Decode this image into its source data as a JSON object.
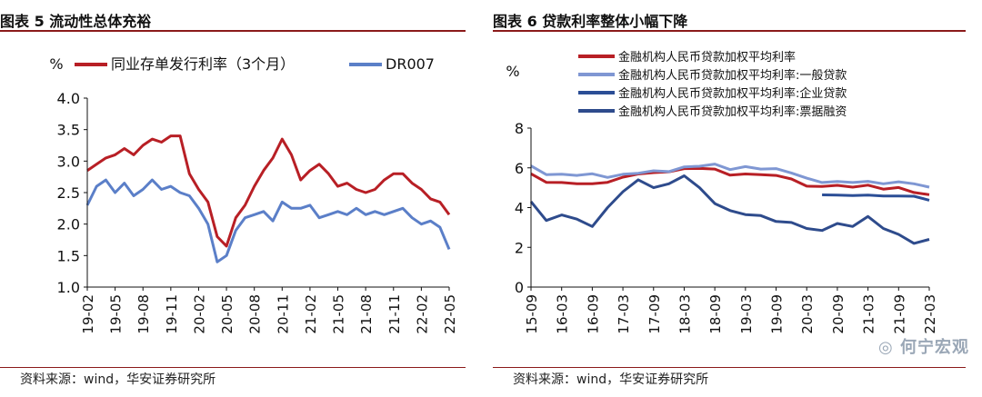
{
  "fig5": {
    "title": "图表 5 流动性总体充裕",
    "source": "资料来源：wind，华安证券研究所",
    "chart_data": {
      "type": "line",
      "unit": "%",
      "x": [
        "19-02",
        "19-03",
        "19-04",
        "19-05",
        "19-06",
        "19-07",
        "19-08",
        "19-09",
        "19-10",
        "19-11",
        "19-12",
        "20-01",
        "20-02",
        "20-03",
        "20-04",
        "20-05",
        "20-06",
        "20-07",
        "20-08",
        "20-09",
        "20-10",
        "20-11",
        "20-12",
        "21-01",
        "21-02",
        "21-03",
        "21-04",
        "21-05",
        "21-06",
        "21-07",
        "21-08",
        "21-09",
        "21-10",
        "21-11",
        "21-12",
        "22-01",
        "22-02",
        "22-03",
        "22-04",
        "22-05"
      ],
      "xticks": [
        "19-02",
        "19-05",
        "19-08",
        "19-11",
        "20-02",
        "20-05",
        "20-08",
        "20-11",
        "21-02",
        "21-05",
        "21-08",
        "21-11",
        "22-02",
        "22-05"
      ],
      "ylim": [
        1.0,
        4.0
      ],
      "yticks": [
        "4.0",
        "3.5",
        "3.0",
        "2.5",
        "2.0",
        "1.5",
        "1.0"
      ],
      "legend_position": "top",
      "series": [
        {
          "name": "同业存单发行利率（3个月）",
          "color": "#b81f25",
          "values": [
            2.85,
            2.95,
            3.05,
            3.1,
            3.2,
            3.1,
            3.25,
            3.35,
            3.3,
            3.4,
            3.4,
            2.8,
            2.55,
            2.35,
            1.8,
            1.65,
            2.1,
            2.3,
            2.6,
            2.85,
            3.05,
            3.35,
            3.1,
            2.7,
            2.85,
            2.95,
            2.8,
            2.6,
            2.65,
            2.55,
            2.5,
            2.55,
            2.7,
            2.8,
            2.8,
            2.65,
            2.55,
            2.4,
            2.35,
            2.15
          ]
        },
        {
          "name": "DR007",
          "color": "#5b7fc8",
          "values": [
            2.3,
            2.6,
            2.7,
            2.5,
            2.65,
            2.45,
            2.55,
            2.7,
            2.55,
            2.6,
            2.5,
            2.45,
            2.25,
            2.0,
            1.4,
            1.5,
            1.9,
            2.1,
            2.15,
            2.2,
            2.05,
            2.35,
            2.25,
            2.25,
            2.3,
            2.1,
            2.15,
            2.2,
            2.15,
            2.25,
            2.15,
            2.2,
            2.15,
            2.2,
            2.25,
            2.1,
            2.0,
            2.05,
            1.95,
            1.6
          ]
        }
      ]
    }
  },
  "fig6": {
    "title": "图表 6 贷款利率整体小幅下降",
    "source": "资料来源：wind，华安证券研究所",
    "chart_data": {
      "type": "line",
      "unit": "%",
      "x": [
        "15-09",
        "15-12",
        "16-03",
        "16-06",
        "16-09",
        "16-12",
        "17-03",
        "17-06",
        "17-09",
        "17-12",
        "18-03",
        "18-06",
        "18-09",
        "18-12",
        "19-03",
        "19-06",
        "19-09",
        "19-12",
        "20-03",
        "20-06",
        "20-09",
        "20-12",
        "21-03",
        "21-06",
        "21-09",
        "21-12",
        "22-03"
      ],
      "xticks": [
        "15-09",
        "16-03",
        "16-09",
        "17-03",
        "17-09",
        "18-03",
        "18-09",
        "19-03",
        "19-09",
        "20-03",
        "20-09",
        "21-03",
        "21-09",
        "22-03"
      ],
      "ylim": [
        0,
        8
      ],
      "yticks": [
        "8",
        "6",
        "4",
        "2",
        "0"
      ],
      "legend_position": "top",
      "series": [
        {
          "name": "金融机构人民币贷款加权平均利率",
          "color": "#b81f25",
          "values": [
            5.7,
            5.27,
            5.26,
            5.2,
            5.2,
            5.27,
            5.53,
            5.69,
            5.76,
            5.8,
            5.96,
            5.97,
            5.94,
            5.63,
            5.69,
            5.66,
            5.62,
            5.44,
            5.08,
            5.06,
            5.12,
            5.03,
            5.13,
            4.93,
            5.01,
            4.76,
            4.65
          ]
        },
        {
          "name": "金融机构人民币贷款加权平均利率:一般贷款",
          "color": "#7f97d3",
          "values": [
            6.1,
            5.66,
            5.68,
            5.62,
            5.7,
            5.52,
            5.68,
            5.73,
            5.85,
            5.81,
            6.05,
            6.08,
            6.19,
            5.91,
            6.06,
            5.94,
            5.96,
            5.74,
            5.48,
            5.26,
            5.31,
            5.26,
            5.32,
            5.2,
            5.3,
            5.2,
            5.03
          ]
        },
        {
          "name": "金融机构人民币贷款加权平均利率:企业贷款",
          "color": "#2b4e96",
          "values": [
            null,
            null,
            null,
            null,
            null,
            null,
            null,
            null,
            null,
            null,
            null,
            null,
            null,
            null,
            null,
            null,
            null,
            null,
            null,
            4.64,
            4.63,
            4.61,
            4.63,
            4.58,
            4.58,
            4.57,
            4.37
          ]
        },
        {
          "name": "金融机构人民币贷款加权平均利率:票据融资",
          "color": "#2e4b8c",
          "values": [
            4.3,
            3.35,
            3.63,
            3.42,
            3.05,
            4.0,
            4.8,
            5.4,
            5.0,
            5.2,
            5.6,
            5.0,
            4.2,
            3.85,
            3.65,
            3.6,
            3.3,
            3.25,
            2.95,
            2.85,
            3.2,
            3.05,
            3.55,
            2.95,
            2.65,
            2.2,
            2.4
          ]
        }
      ]
    }
  },
  "watermark": {
    "text": "何宁宏观",
    "icon": "wechat-icon"
  }
}
